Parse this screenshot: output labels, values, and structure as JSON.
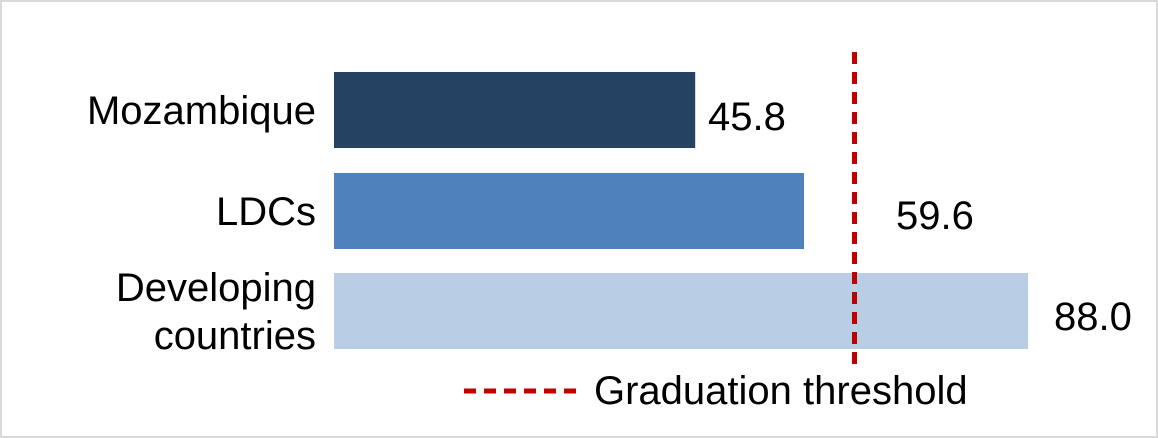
{
  "chart_data": {
    "type": "bar",
    "orientation": "horizontal",
    "categories": [
      [
        "Mozambique"
      ],
      [
        "LDCs"
      ],
      [
        "Developing",
        "countries"
      ]
    ],
    "values": [
      45.8,
      59.6,
      88.0
    ],
    "value_labels": [
      "45.8",
      "59.6",
      "88.0"
    ],
    "bar_colors": [
      "#264262",
      "#4f81bd",
      "#b9cde5"
    ],
    "reference_line": {
      "name": "Graduation threshold",
      "value": 66,
      "style": "dashed",
      "color": "#c00000"
    },
    "title": "",
    "xlabel": "",
    "ylabel": "",
    "xlim": [
      0,
      88.0
    ],
    "grid": false,
    "legend": {
      "position": "bottom-right",
      "entries": [
        "Graduation threshold"
      ]
    }
  }
}
